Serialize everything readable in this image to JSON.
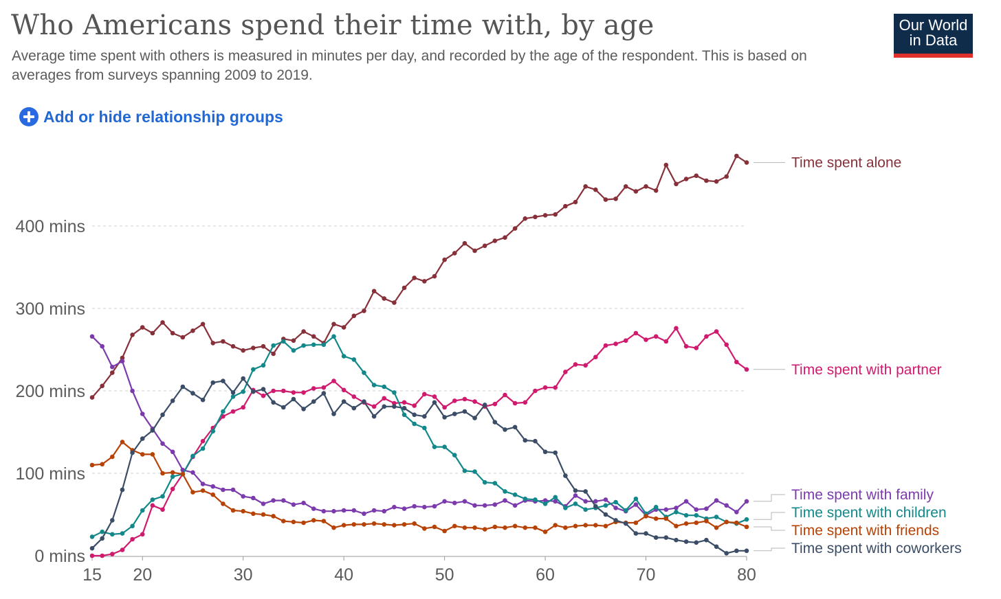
{
  "header": {
    "title": "Who Americans spend their time with, by age",
    "subtitle": "Average time spent with others is measured in minutes per day, and recorded by the age of the respondent. This is based on averages from surveys spanning 2009 to 2019."
  },
  "logo": {
    "line1": "Our World",
    "line2": "in Data"
  },
  "controls": {
    "add_label": "Add or hide relationship groups",
    "icon": "plus-circle-icon"
  },
  "colors": {
    "accent": "#2a6ae0",
    "logo_bg": "#0f2c4b",
    "logo_bar": "#e0302b"
  },
  "chart_data": {
    "type": "line",
    "title": "Who Americans spend their time with, by age",
    "subtitle": "Average time spent with others is measured in minutes per day, and recorded by the age of the respondent. This is based on averages from surveys spanning 2009 to 2019.",
    "x_ticks": [
      15,
      20,
      30,
      40,
      50,
      60,
      70,
      80
    ],
    "y_ticks": [
      0,
      100,
      200,
      300,
      400
    ],
    "y_tick_labels": [
      "0 mins",
      "100 mins",
      "200 mins",
      "300 mins",
      "400 mins"
    ],
    "xlim": [
      15,
      80
    ],
    "ylim": [
      0,
      490
    ],
    "grid": "horizontal dashed",
    "legend": "labels at line ends (right)",
    "x": [
      15,
      16,
      17,
      18,
      19,
      20,
      21,
      22,
      23,
      24,
      25,
      26,
      27,
      28,
      29,
      30,
      31,
      32,
      33,
      34,
      35,
      36,
      37,
      38,
      39,
      40,
      41,
      42,
      43,
      44,
      45,
      46,
      47,
      48,
      49,
      50,
      51,
      52,
      53,
      54,
      55,
      56,
      57,
      58,
      59,
      60,
      61,
      62,
      63,
      64,
      65,
      66,
      67,
      68,
      69,
      70,
      71,
      72,
      73,
      74,
      75,
      76,
      77,
      78,
      79,
      80
    ],
    "series": [
      {
        "name": "Time spent alone",
        "color": "#883039",
        "values": [
          192,
          206,
          222,
          240,
          268,
          277,
          270,
          283,
          270,
          265,
          273,
          281,
          258,
          260,
          254,
          249,
          252,
          254,
          245,
          263,
          261,
          272,
          266,
          258,
          281,
          277,
          291,
          297,
          321,
          312,
          307,
          325,
          337,
          333,
          339,
          359,
          367,
          379,
          370,
          376,
          382,
          386,
          397,
          409,
          411,
          413,
          414,
          424,
          429,
          448,
          444,
          432,
          433,
          448,
          442,
          448,
          443,
          474,
          451,
          457,
          461,
          455,
          454,
          460,
          485,
          477
        ]
      },
      {
        "name": "Time spent with partner",
        "color": "#d01a6d",
        "values": [
          0,
          0,
          2,
          7,
          20,
          26,
          61,
          56,
          81,
          99,
          120,
          139,
          155,
          169,
          175,
          180,
          201,
          194,
          200,
          200,
          198,
          198,
          203,
          204,
          212,
          201,
          193,
          186,
          181,
          191,
          185,
          186,
          182,
          196,
          193,
          180,
          188,
          190,
          187,
          181,
          184,
          195,
          185,
          186,
          200,
          204,
          204,
          223,
          232,
          231,
          241,
          255,
          257,
          261,
          270,
          262,
          266,
          260,
          276,
          254,
          252,
          266,
          272,
          256,
          235,
          226
        ]
      },
      {
        "name": "Time spent with family",
        "color": "#7c3bac",
        "values": [
          266,
          254,
          229,
          236,
          200,
          172,
          154,
          136,
          126,
          104,
          101,
          87,
          84,
          80,
          80,
          72,
          70,
          63,
          67,
          67,
          62,
          64,
          57,
          54,
          54,
          55,
          55,
          51,
          55,
          54,
          59,
          57,
          60,
          59,
          60,
          66,
          64,
          66,
          61,
          61,
          62,
          67,
          61,
          67,
          66,
          67,
          66,
          60,
          73,
          66,
          66,
          68,
          58,
          54,
          62,
          49,
          56,
          56,
          58,
          66,
          56,
          57,
          67,
          61,
          53,
          66
        ]
      },
      {
        "name": "Time spent with children",
        "color": "#12888a",
        "values": [
          23,
          29,
          26,
          27,
          36,
          55,
          68,
          72,
          96,
          99,
          121,
          130,
          151,
          175,
          193,
          199,
          226,
          231,
          255,
          260,
          249,
          255,
          256,
          256,
          266,
          242,
          238,
          222,
          207,
          205,
          198,
          171,
          160,
          155,
          132,
          132,
          122,
          103,
          102,
          89,
          88,
          78,
          74,
          69,
          68,
          63,
          71,
          58,
          63,
          56,
          58,
          61,
          65,
          55,
          69,
          51,
          59,
          47,
          53,
          49,
          49,
          45,
          47,
          41,
          39,
          44
        ]
      },
      {
        "name": "Time spent with friends",
        "color": "#b74206",
        "values": [
          110,
          111,
          120,
          138,
          128,
          123,
          123,
          100,
          101,
          99,
          77,
          79,
          74,
          63,
          55,
          54,
          51,
          50,
          48,
          42,
          41,
          40,
          43,
          42,
          34,
          37,
          38,
          38,
          39,
          38,
          37,
          38,
          39,
          33,
          35,
          30,
          36,
          34,
          34,
          32,
          35,
          34,
          36,
          34,
          34,
          29,
          37,
          34,
          36,
          37,
          37,
          36,
          41,
          40,
          40,
          48,
          45,
          45,
          36,
          39,
          40,
          42,
          34,
          41,
          40,
          35
        ]
      },
      {
        "name": "Time spent with coworkers",
        "color": "#3b4d66",
        "values": [
          9,
          21,
          43,
          80,
          125,
          142,
          152,
          171,
          188,
          205,
          197,
          189,
          210,
          212,
          198,
          215,
          199,
          202,
          186,
          180,
          190,
          178,
          187,
          197,
          172,
          187,
          179,
          187,
          169,
          181,
          181,
          179,
          171,
          169,
          186,
          168,
          172,
          175,
          167,
          183,
          162,
          153,
          156,
          140,
          139,
          126,
          125,
          97,
          79,
          78,
          60,
          50,
          43,
          39,
          27,
          27,
          22,
          22,
          19,
          17,
          16,
          19,
          11,
          3,
          6,
          6
        ]
      }
    ]
  }
}
